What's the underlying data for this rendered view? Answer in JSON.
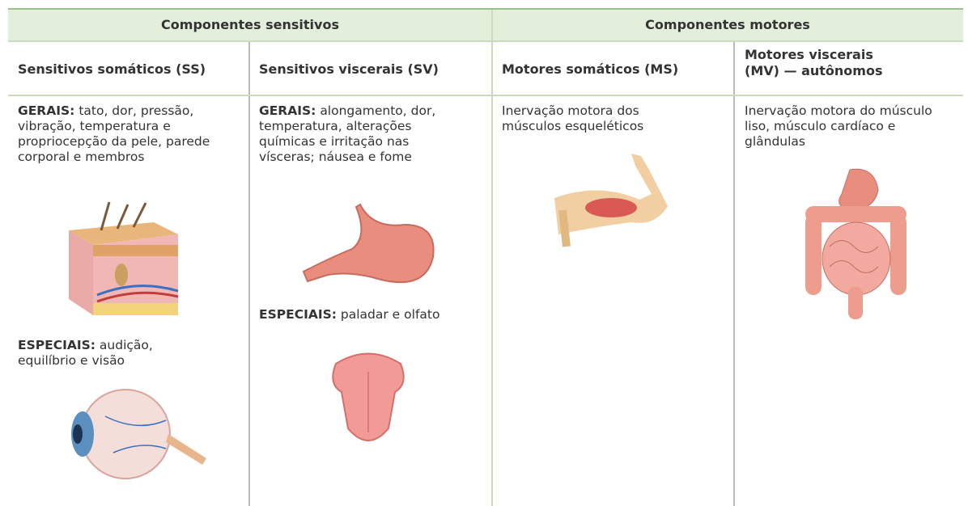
{
  "table": {
    "groups": [
      "Componentes sensitivos",
      "Componentes motores"
    ],
    "columns": [
      "Sensitivos somáticos (SS)",
      "Sensitivos viscerais (SV)",
      "Motores somáticos (MS)",
      "Motores viscerais (MV) — autônomos"
    ],
    "cells": [
      [
        {
          "label": "GERAIS:",
          "text": "tato, dor, pressão, vibração, temperatura e propriocepção da pele, parede corporal e membros"
        },
        {
          "label": "ESPECIAIS:",
          "text": "audição, equilíbrio e visão"
        }
      ],
      [
        {
          "label": "GERAIS:",
          "text": "alongamento, dor, temperatura, alterações químicas e irritação nas vísceras; náusea e fome"
        },
        {
          "label": "ESPECIAIS:",
          "text": "paladar e olfato"
        }
      ],
      [
        {
          "text": "Inervação motora dos músculos esqueléticos"
        }
      ],
      [
        {
          "text": "Inervação motora do músculo liso, músculo cardíaco e glândulas"
        }
      ]
    ]
  }
}
